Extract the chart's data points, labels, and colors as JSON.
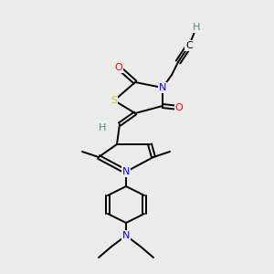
{
  "bg_color": "#ebebeb",
  "atom_colors": {
    "C": "#000000",
    "H": "#4a8a8a",
    "N": "#0000ff",
    "O": "#ff0000",
    "S": "#cccc00"
  },
  "font_size": 8.0,
  "fig_size": [
    3.0,
    3.0
  ],
  "dpi": 100
}
